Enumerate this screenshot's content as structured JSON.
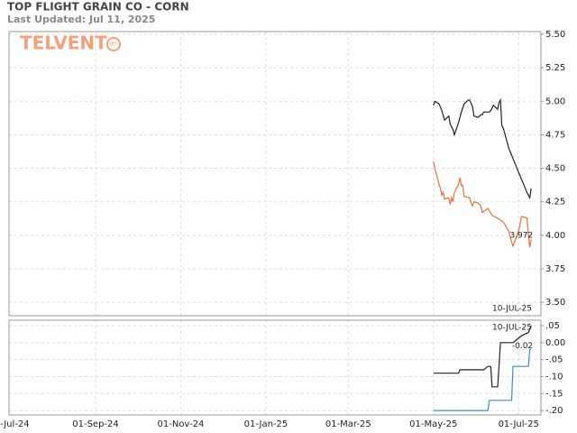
{
  "header": {
    "title": "TOP FLIGHT GRAIN CO - CORN",
    "subtitle": "Last Updated: Jul 11, 2025",
    "logo": "TELVENT",
    "logo_badge": "dtn"
  },
  "chart_data": [
    {
      "type": "line",
      "date_label": "10-JUL-25",
      "xlim": [
        "2024-07-01",
        "2025-07-17"
      ],
      "xticks": [
        "2024-07-01",
        "2024-09-01",
        "2024-11-01",
        "2025-01-01",
        "2025-03-01",
        "2025-05-01",
        "2025-07-01"
      ],
      "ylim": [
        3.4,
        5.52
      ],
      "yticks": [
        {
          "value": 5.5,
          "label": "5.50"
        },
        5.25,
        {
          "value": 5,
          "label": "5.00"
        },
        4.75,
        {
          "value": 4.5,
          "label": "4.50"
        },
        4.25,
        {
          "value": 4,
          "label": "4.00"
        },
        3.75,
        {
          "value": 3.5,
          "label": "3.50"
        }
      ],
      "grid": true,
      "series": [
        {
          "color": "#222222",
          "x": [
            "2025-05-01",
            "2025-05-02",
            "2025-05-05",
            "2025-05-07",
            "2025-05-09",
            "2025-05-12",
            "2025-05-13",
            "2025-05-15",
            "2025-05-16",
            "2025-05-19",
            "2025-05-21",
            "2025-05-23",
            "2025-05-26",
            "2025-05-27",
            "2025-05-29",
            "2025-05-30",
            "2025-06-02",
            "2025-06-04",
            "2025-06-05",
            "2025-06-06",
            "2025-06-10",
            "2025-06-11",
            "2025-06-13",
            "2025-06-16",
            "2025-06-17",
            "2025-06-18",
            "2025-06-19",
            "2025-06-20",
            "2025-06-24",
            "2025-07-01",
            "2025-07-07",
            "2025-07-09",
            "2025-07-10"
          ],
          "values": [
            4.97,
            5.0,
            4.98,
            4.93,
            4.86,
            4.89,
            4.83,
            4.79,
            4.75,
            4.84,
            4.92,
            4.98,
            5.01,
            5.01,
            4.96,
            4.89,
            4.88,
            4.9,
            4.9,
            4.92,
            4.92,
            4.93,
            4.97,
            4.94,
            4.99,
            5.01,
            4.82,
            4.8,
            4.65,
            4.47,
            4.32,
            4.28,
            4.35
          ]
        },
        {
          "color": "#e8703a",
          "end_label": "3.972",
          "x": [
            "2025-05-01",
            "2025-05-02",
            "2025-05-05",
            "2025-05-06",
            "2025-05-07",
            "2025-05-08",
            "2025-05-09",
            "2025-05-12",
            "2025-05-13",
            "2025-05-14",
            "2025-05-15",
            "2025-05-16",
            "2025-05-19",
            "2025-05-20",
            "2025-05-21",
            "2025-05-22",
            "2025-05-23",
            "2025-05-27",
            "2025-05-28",
            "2025-05-29",
            "2025-05-30",
            "2025-06-02",
            "2025-06-04",
            "2025-06-05",
            "2025-06-09",
            "2025-06-12",
            "2025-06-17",
            "2025-06-20",
            "2025-06-24",
            "2025-06-26",
            "2025-06-27",
            "2025-07-01",
            "2025-07-02",
            "2025-07-03",
            "2025-07-07",
            "2025-07-08",
            "2025-07-09",
            "2025-07-10"
          ],
          "values": [
            4.55,
            4.5,
            4.38,
            4.35,
            4.3,
            4.32,
            4.27,
            4.28,
            4.23,
            4.28,
            4.25,
            4.32,
            4.38,
            4.43,
            4.37,
            4.37,
            4.29,
            4.28,
            4.24,
            4.22,
            4.25,
            4.24,
            4.22,
            4.17,
            4.2,
            4.15,
            4.12,
            4.1,
            4.03,
            3.95,
            3.92,
            4.03,
            4.08,
            4.14,
            4.13,
            4.0,
            3.91,
            3.972
          ]
        }
      ]
    },
    {
      "type": "line",
      "date_label": "10-JUL-25",
      "xlim": [
        "2024-07-01",
        "2025-07-17"
      ],
      "xticks": [
        {
          "value": "2024-07-01",
          "label": "01-Jul-24"
        },
        {
          "value": "2024-09-01",
          "label": "01-Sep-24"
        },
        {
          "value": "2024-11-01",
          "label": "01-Nov-24"
        },
        {
          "value": "2025-01-01",
          "label": "01-Jan-25"
        },
        {
          "value": "2025-03-01",
          "label": "01-Mar-25"
        },
        {
          "value": "2025-05-01",
          "label": "01-May-25"
        },
        {
          "value": "2025-07-01",
          "label": "01-Jul-25"
        }
      ],
      "ylim": [
        -0.213,
        0.066
      ],
      "yticks": [
        {
          "value": 0.05,
          "label": ".05"
        },
        {
          "value": 0,
          "label": "0.00"
        },
        {
          "value": -0.05,
          "label": "-.05"
        },
        {
          "value": -0.1,
          "label": "-.10"
        },
        {
          "value": -0.15,
          "label": "-.15"
        },
        {
          "value": -0.2,
          "label": "-.20"
        }
      ],
      "grid": true,
      "series": [
        {
          "color": "#222222",
          "x": [
            "2025-05-01",
            "2025-05-19",
            "2025-05-20",
            "2025-06-06",
            "2025-06-09",
            "2025-06-11",
            "2025-06-12",
            "2025-06-16",
            "2025-06-17",
            "2025-06-18",
            "2025-06-27",
            "2025-06-30",
            "2025-07-03",
            "2025-07-08",
            "2025-07-10"
          ],
          "values": [
            -0.09,
            -0.09,
            -0.08,
            -0.08,
            -0.07,
            -0.07,
            -0.13,
            -0.13,
            -0.07,
            0.0,
            0.0,
            0.01,
            0.02,
            0.03,
            0.05
          ]
        },
        {
          "color": "#3a8fc8",
          "end_label": "-0.02",
          "x": [
            "2025-05-01",
            "2025-06-09",
            "2025-06-10",
            "2025-06-26",
            "2025-06-27",
            "2025-07-08",
            "2025-07-09",
            "2025-07-10"
          ],
          "values": [
            -0.2,
            -0.2,
            -0.17,
            -0.17,
            -0.07,
            -0.07,
            -0.02,
            -0.02
          ]
        }
      ]
    }
  ]
}
